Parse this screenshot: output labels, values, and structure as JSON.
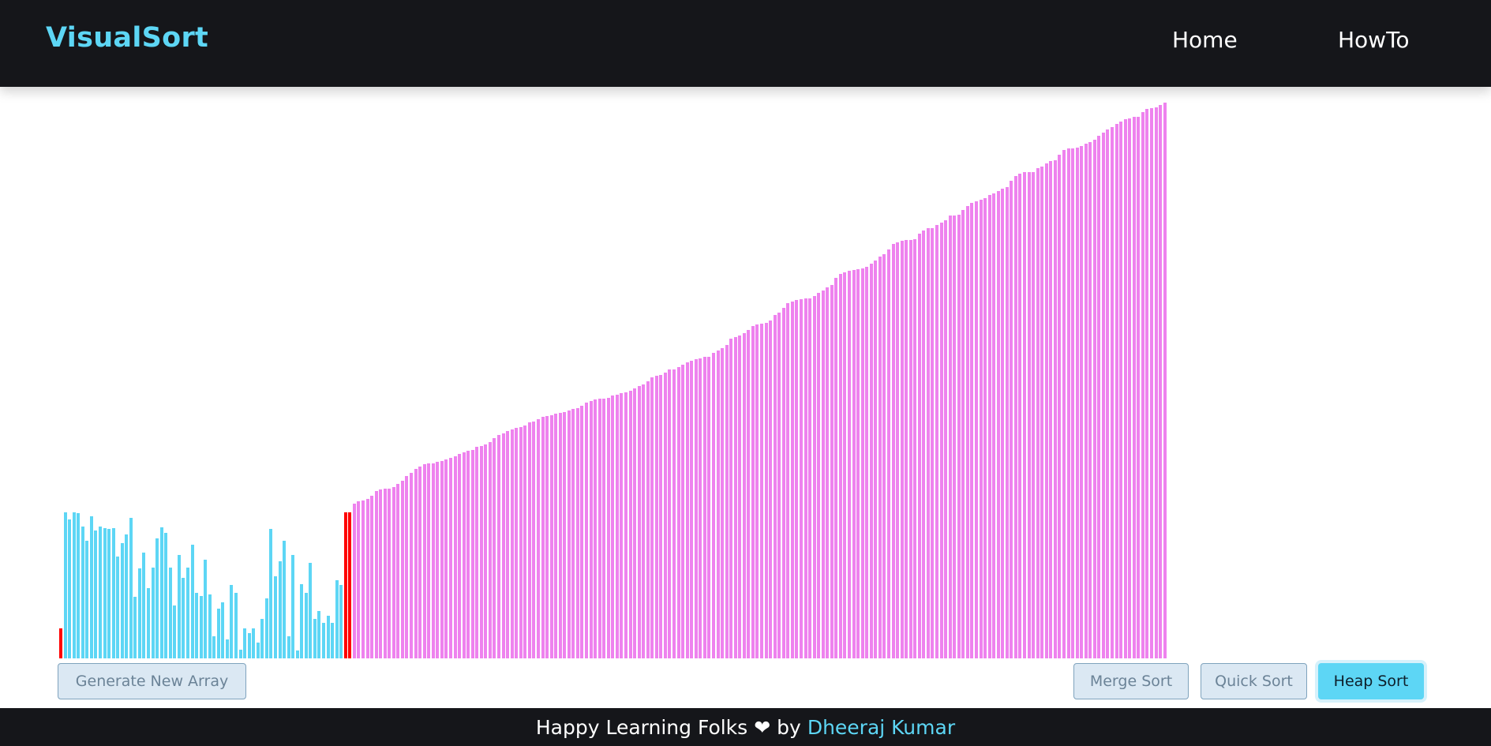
{
  "nav": {
    "brand": "VisualSort",
    "links": [
      "Home",
      "HowTo"
    ]
  },
  "buttons": {
    "generate": "Generate New Array",
    "merge": "Merge Sort",
    "quick": "Quick Sort",
    "heap": "Heap Sort"
  },
  "footer": {
    "text_before": "Happy Learning Folks",
    "heart": "❤",
    "text_by": "by",
    "author": "Dheeraj Kumar"
  },
  "colors": {
    "unsorted": "#5dd6f5",
    "sorted": "#ee82ee",
    "comparing": "#ff0000",
    "accent": "#5dd6f5",
    "dark": "#15161a"
  },
  "array": {
    "max_value": 708,
    "unsorted_values": [
      38,
      186,
      177,
      186,
      185,
      168,
      150,
      181,
      163,
      168,
      166,
      165,
      166,
      130,
      147,
      158,
      179,
      78,
      115,
      135,
      90,
      116,
      153,
      167,
      160,
      116,
      67,
      132,
      103,
      116,
      145,
      83,
      79,
      126,
      81,
      28,
      63,
      71,
      24,
      94,
      83,
      11,
      38,
      32,
      38,
      20,
      50,
      76,
      165,
      105,
      124,
      150,
      28,
      132,
      10,
      95,
      83,
      122,
      50,
      60,
      45,
      54,
      45,
      100,
      94
    ],
    "pivot_values": [
      186,
      186
    ],
    "sorted_values": [
      197,
      200,
      201,
      203,
      207,
      213,
      215,
      216,
      216,
      218,
      222,
      226,
      232,
      236,
      241,
      244,
      247,
      248,
      248,
      250,
      251,
      253,
      255,
      257,
      260,
      262,
      264,
      266,
      270,
      271,
      273,
      276,
      281,
      285,
      287,
      290,
      292,
      294,
      295,
      297,
      301,
      302,
      305,
      308,
      309,
      310,
      312,
      313,
      314,
      316,
      318,
      319,
      322,
      326,
      328,
      330,
      331,
      331,
      332,
      335,
      336,
      338,
      339,
      341,
      344,
      347,
      349,
      353,
      358,
      360,
      361,
      364,
      368,
      368,
      371,
      374,
      377,
      379,
      381,
      382,
      384,
      384,
      389,
      392,
      395,
      399,
      407,
      409,
      411,
      414,
      418,
      423,
      425,
      426,
      427,
      430,
      437,
      440,
      447,
      453,
      455,
      457,
      458,
      459,
      459,
      462,
      466,
      469,
      473,
      476,
      485,
      490,
      492,
      494,
      495,
      496,
      497,
      499,
      503,
      507,
      512,
      515,
      521,
      528,
      530,
      532,
      533,
      533,
      534,
      541,
      545,
      548,
      548,
      552,
      555,
      558,
      564,
      564,
      565,
      571,
      576,
      580,
      582,
      584,
      586,
      590,
      592,
      595,
      598,
      600,
      608,
      614,
      617,
      619,
      619,
      619,
      625,
      627,
      631,
      634,
      635,
      642,
      648,
      650,
      650,
      651,
      653,
      656,
      658,
      661,
      666,
      670,
      674,
      677,
      681,
      684,
      687,
      688,
      690,
      690,
      696,
      700,
      701,
      702,
      705,
      708
    ]
  }
}
